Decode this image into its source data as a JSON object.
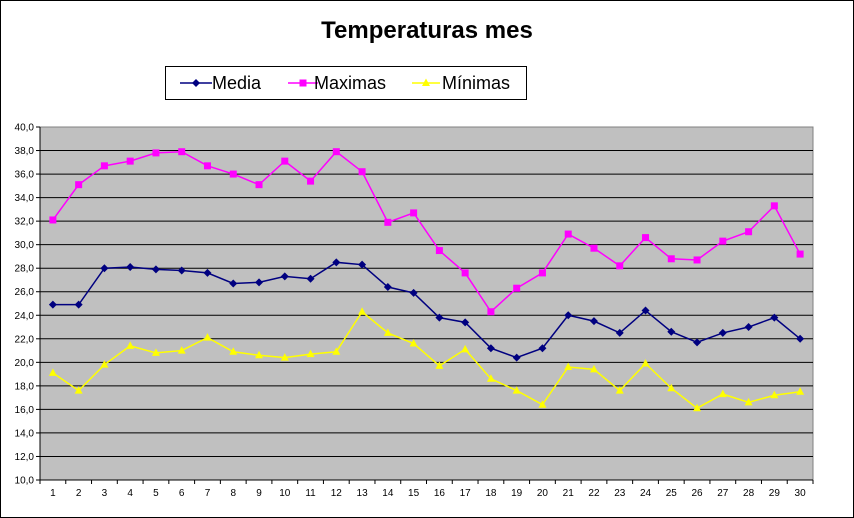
{
  "chart_data": {
    "type": "line",
    "title": "Temperaturas mes",
    "xlabel": "",
    "ylabel": "",
    "x": [
      1,
      2,
      3,
      4,
      5,
      6,
      7,
      8,
      9,
      10,
      11,
      12,
      13,
      14,
      15,
      16,
      17,
      18,
      19,
      20,
      21,
      22,
      23,
      24,
      25,
      26,
      27,
      28,
      29,
      30
    ],
    "ylim": [
      10.0,
      40.0
    ],
    "y_tick_labels": [
      "10,0",
      "12,0",
      "14,0",
      "16,0",
      "18,0",
      "20,0",
      "22,0",
      "24,0",
      "26,0",
      "28,0",
      "30,0",
      "32,0",
      "34,0",
      "36,0",
      "38,0",
      "40,0"
    ],
    "grid": true,
    "legend_position": "top",
    "plot_background": "#C0C0C0",
    "series": [
      {
        "name": "Media",
        "color": "#000080",
        "marker": "diamond",
        "values": [
          24.9,
          24.9,
          28.0,
          28.1,
          27.9,
          27.8,
          27.6,
          26.7,
          26.8,
          27.3,
          27.1,
          28.5,
          28.3,
          26.4,
          25.9,
          23.8,
          23.4,
          21.2,
          20.4,
          21.2,
          24.0,
          23.5,
          22.5,
          24.4,
          22.6,
          21.7,
          22.5,
          23.0,
          23.8,
          22.0
        ]
      },
      {
        "name": "Maximas",
        "color": "#FF00FF",
        "marker": "square",
        "values": [
          32.1,
          35.1,
          36.7,
          37.1,
          37.8,
          37.9,
          36.7,
          36.0,
          35.1,
          37.1,
          35.4,
          37.9,
          36.2,
          31.9,
          32.7,
          29.5,
          27.6,
          24.3,
          26.3,
          27.6,
          30.9,
          29.7,
          28.2,
          30.6,
          28.8,
          28.7,
          30.3,
          31.1,
          33.3,
          29.2
        ]
      },
      {
        "name": "Mínimas",
        "color": "#FFFF00",
        "marker": "triangle",
        "values": [
          19.1,
          17.6,
          19.8,
          21.4,
          20.8,
          21.0,
          22.1,
          20.9,
          20.6,
          20.4,
          20.7,
          20.9,
          24.3,
          22.5,
          21.6,
          19.7,
          21.1,
          18.6,
          17.6,
          16.4,
          19.6,
          19.4,
          17.6,
          19.9,
          17.8,
          16.1,
          17.3,
          16.6,
          17.2,
          17.5
        ]
      }
    ]
  }
}
